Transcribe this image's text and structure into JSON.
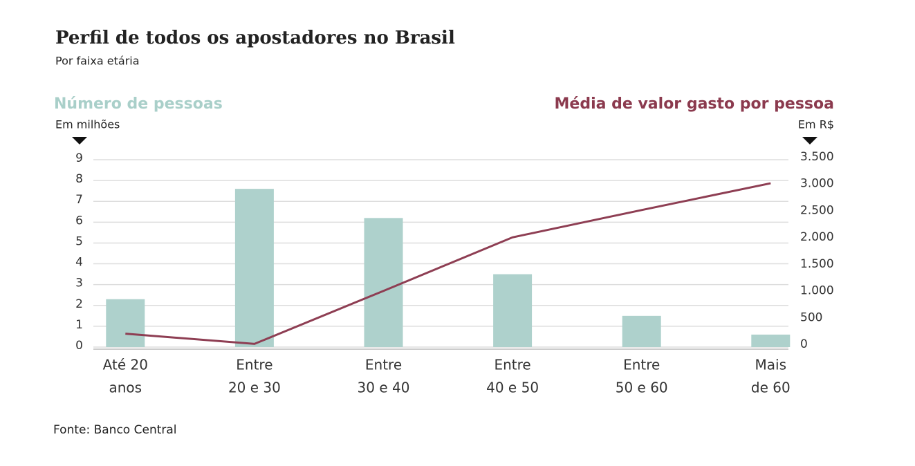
{
  "chart_data": {
    "type": "bar-line",
    "title": "Perfil de todos os apostadores no Brasil",
    "subtitle": "Por faixa etária",
    "y_axis_title": "Número de pessoas",
    "y_axis_unit": "Em milhões",
    "y2_axis_title": "Média de valor gasto por pessoa",
    "y2_axis_unit": "Em R$",
    "source": "Fonte: Banco Central",
    "categories": [
      [
        "Até 20",
        "anos"
      ],
      [
        "Entre",
        "20 e 30"
      ],
      [
        "Entre",
        "30 e 40"
      ],
      [
        "Entre",
        "40 e 50"
      ],
      [
        "Entre",
        "50 e 60"
      ],
      [
        "Mais",
        "de 60"
      ]
    ],
    "series": [
      {
        "name": "Número de pessoas",
        "color": "#aed1cc",
        "type": "bar",
        "values": [
          2.3,
          7.6,
          6.2,
          3.5,
          1.5,
          0.6
        ]
      },
      {
        "name": "Média de valor gasto por pessoa",
        "color": "#8e3e53",
        "type": "line",
        "axis": "y2",
        "values": [
          250,
          60,
          1050,
          2050,
          2560,
          3060
        ]
      }
    ],
    "ylim": [
      0,
      9
    ],
    "yticks": [
      0,
      1,
      2,
      3,
      4,
      5,
      6,
      7,
      8,
      9
    ],
    "y2lim": [
      0,
      3500
    ],
    "y2ticks": [
      0,
      500,
      {
        "value": 1000,
        "label": "1.000"
      },
      {
        "value": 1500,
        "label": "1.500"
      },
      {
        "value": 2000,
        "label": "2.000"
      },
      {
        "value": 2500,
        "label": "2.500"
      },
      {
        "value": 3000,
        "label": "3.000"
      },
      {
        "value": 3500,
        "label": "3.500"
      }
    ],
    "grid": true
  }
}
